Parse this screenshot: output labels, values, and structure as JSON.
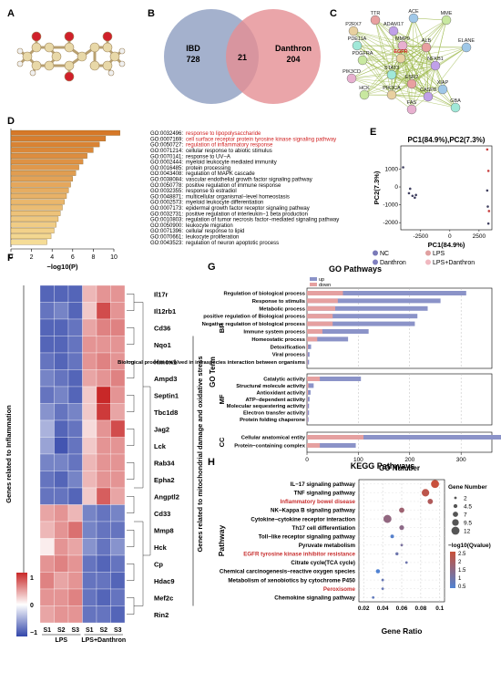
{
  "panel_labels": [
    "A",
    "B",
    "C",
    "D",
    "E",
    "F",
    "G",
    "H"
  ],
  "panel_b": {
    "left_name": "IBD",
    "left_count": "728",
    "overlap": "21",
    "right_name": "Danthron",
    "right_count": "204",
    "left_color": "#8d9ec0",
    "right_color": "#e58f93"
  },
  "panel_c": {
    "nodes": [
      "TTR",
      "ACE",
      "MME",
      "P2RX7",
      "ADAM17",
      "PDE11A",
      "MMP9",
      "ALB",
      "ELANE",
      "PDGFRA",
      "EGFR",
      "NFKB1",
      "STAT3",
      "PIK3CD",
      "ESR2",
      "XIAP",
      "HCK",
      "PIK3CA",
      "CASP8",
      "GBA",
      "FAS"
    ]
  },
  "panel_d": {
    "xlabel": "−log10(P)",
    "ticks": [
      "0",
      "2",
      "4",
      "6",
      "8",
      "10"
    ],
    "terms": [
      {
        "id": "GO:0032496",
        "label": "response to lipopolysaccharide",
        "value": 10.6,
        "highlight": true
      },
      {
        "id": "GO:0007169",
        "label": "cell surface receptor protein tyrosine kinase signaling pathway",
        "value": 9.2,
        "highlight": true
      },
      {
        "id": "GO:0050727",
        "label": "regulation of inflammatory response",
        "value": 8.6,
        "highlight": true
      },
      {
        "id": "GO:0071214",
        "label": "cellular response to abiotic stimulus",
        "value": 8.0,
        "highlight": false
      },
      {
        "id": "GO:0070141",
        "label": "response to UV−A",
        "value": 7.4,
        "highlight": false
      },
      {
        "id": "GO:0002444",
        "label": "myeloid leukocyte mediated immunity",
        "value": 7.0,
        "highlight": false
      },
      {
        "id": "GO:0016485",
        "label": "protein processing",
        "value": 6.6,
        "highlight": false
      },
      {
        "id": "GO:0043408",
        "label": "regulation of MAPK cascade",
        "value": 6.3,
        "highlight": false
      },
      {
        "id": "GO:0038084",
        "label": "vascular endothelial growth factor signaling pathway",
        "value": 6.0,
        "highlight": false
      },
      {
        "id": "GO:0050778",
        "label": "positive regulation of immune response",
        "value": 5.8,
        "highlight": false
      },
      {
        "id": "GO:0032355",
        "label": "response to estradiol",
        "value": 5.6,
        "highlight": false
      },
      {
        "id": "GO:0048871",
        "label": "multicellular organismal−level homeostasis",
        "value": 5.4,
        "highlight": false
      },
      {
        "id": "GO:0002573",
        "label": "myeloid leukocyte differentiation",
        "value": 5.2,
        "highlight": false
      },
      {
        "id": "GO:0007173",
        "label": "epidermal growth factor receptor signaling pathway",
        "value": 5.0,
        "highlight": false
      },
      {
        "id": "GO:0032731",
        "label": "positive regulation of interleukin−1 beta production",
        "value": 4.8,
        "highlight": false
      },
      {
        "id": "GO:0010803",
        "label": "regulation of tumor necrosis factor−mediated signaling pathway",
        "value": 4.6,
        "highlight": false
      },
      {
        "id": "GO:0050900",
        "label": "leukocyte migration",
        "value": 4.4,
        "highlight": false
      },
      {
        "id": "GO:0071396",
        "label": "cellular response to lipid",
        "value": 4.2,
        "highlight": false
      },
      {
        "id": "GO:0070661",
        "label": "leukocyte proliferation",
        "value": 3.9,
        "highlight": false
      },
      {
        "id": "GO:0043523",
        "label": "regulation of neuron apoptotic process",
        "value": 3.5,
        "highlight": false
      }
    ]
  },
  "panel_e": {
    "title": "PC1(84.9%),PC2(7.3%)",
    "xlabel": "PC1(84.9%)",
    "ylabel": "PC2(7.3%)",
    "xticks": [
      -2500,
      0,
      2500
    ],
    "yticks": [
      1000,
      0,
      -1000,
      -2000
    ],
    "xlim": [
      -4200,
      3600
    ],
    "ylim": [
      -2400,
      2300
    ],
    "legend": [
      {
        "name": "NC",
        "color": "#7a7ab8"
      },
      {
        "name": "LPS",
        "color": "#e0a0a0"
      },
      {
        "name": "Danthron",
        "color": "#8080c0"
      },
      {
        "name": "LPS+Danthron",
        "color": "#f0b8c0"
      }
    ],
    "points": [
      {
        "x": -4000,
        "y": 1100,
        "g": 0
      },
      {
        "x": -3500,
        "y": -350,
        "g": 0
      },
      {
        "x": -3200,
        "y": -500,
        "g": 2
      },
      {
        "x": -3000,
        "y": -600,
        "g": 2
      },
      {
        "x": -3400,
        "y": -100,
        "g": 0
      },
      {
        "x": -2900,
        "y": -450,
        "g": 2
      },
      {
        "x": 3200,
        "y": 2100,
        "g": 1
      },
      {
        "x": 3300,
        "y": 900,
        "g": 1
      },
      {
        "x": 3200,
        "y": -200,
        "g": 3
      },
      {
        "x": 3250,
        "y": -1100,
        "g": 3
      },
      {
        "x": 3350,
        "y": -1350,
        "g": 1
      },
      {
        "x": 3300,
        "y": -2050,
        "g": 3
      }
    ]
  },
  "panel_f": {
    "inflammation_label": "Genes related to Inflammation",
    "mito_label": "Genes related to mitochondrial damage and oxidative stress",
    "genes": [
      "Il17r",
      "Il12rb1",
      "Cd36",
      "Nqo1",
      "Hmox1",
      "Ampd3",
      "Septin1",
      "Tbc1d8",
      "Jag2",
      "Lck",
      "Rab34",
      "Epha2",
      "Angptl2",
      "Cd33",
      "Mmp8",
      "Hck",
      "Cp",
      "Hdac9",
      "Mef2c",
      "Rin2"
    ],
    "samples": [
      "S1",
      "S2",
      "S3",
      "S1",
      "S2",
      "S3"
    ],
    "groups": [
      "LPS",
      "LPS+Danthron"
    ],
    "legend_ticks": [
      "1",
      "0",
      "−1"
    ],
    "values": [
      [
        -1,
        -1,
        -1,
        0.4,
        0.6,
        0.6
      ],
      [
        -0.9,
        -0.8,
        -1,
        0.3,
        1,
        0.6
      ],
      [
        -1,
        -1,
        -0.9,
        0.5,
        0.7,
        0.7
      ],
      [
        -1,
        -1,
        -0.9,
        0.6,
        0.6,
        0.6
      ],
      [
        -0.9,
        -1,
        -0.9,
        0.6,
        0.7,
        0.6
      ],
      [
        -0.8,
        -0.9,
        -1,
        0.5,
        0.6,
        0.7
      ],
      [
        -0.9,
        -0.8,
        -1,
        0.3,
        1.2,
        0.6
      ],
      [
        -0.7,
        -0.9,
        -0.8,
        0.3,
        1.1,
        0.5
      ],
      [
        -0.5,
        -1,
        -0.9,
        0.2,
        0.6,
        1.0
      ],
      [
        -0.6,
        -1.1,
        -0.9,
        0.3,
        0.6,
        0.6
      ],
      [
        -0.8,
        -0.8,
        -0.9,
        0.4,
        0.6,
        0.6
      ],
      [
        -0.9,
        -1,
        -0.8,
        0.4,
        0.6,
        0.6
      ],
      [
        -0.9,
        -0.9,
        -1,
        0.3,
        0.9,
        0.5
      ],
      [
        0.5,
        0.6,
        0.4,
        -0.8,
        -0.9,
        -0.8
      ],
      [
        0.4,
        0.6,
        0.8,
        -0.8,
        -0.9,
        -0.9
      ],
      [
        0.1,
        0.6,
        0.5,
        -0.7,
        -0.9,
        -0.7
      ],
      [
        0.6,
        0.7,
        0.6,
        -0.9,
        -1,
        -0.9
      ],
      [
        0.7,
        0.5,
        0.6,
        -0.9,
        -0.9,
        -1
      ],
      [
        0.6,
        0.6,
        0.7,
        -0.9,
        -1,
        -0.9
      ],
      [
        0.5,
        0.6,
        0.6,
        -0.9,
        -0.9,
        -1
      ]
    ]
  },
  "panel_g": {
    "title": "GO Pathways",
    "legend": [
      {
        "name": "up",
        "color": "#8b93c8"
      },
      {
        "name": "down",
        "color": "#e5a0a0"
      }
    ],
    "ylabel": "GO Term",
    "xlabel": "GO Number",
    "xticks": [
      "0",
      "100",
      "200",
      "300"
    ],
    "sections": [
      {
        "name": "BP",
        "items": [
          {
            "label": "Regulation of biological process",
            "up": 240,
            "down": 70
          },
          {
            "label": "Response to stimulis",
            "up": 200,
            "down": 60
          },
          {
            "label": "Metabolic process",
            "up": 180,
            "down": 55
          },
          {
            "label": "positive regulation of Biological process",
            "up": 165,
            "down": 50
          },
          {
            "label": "Negative regulation of biological process",
            "up": 160,
            "down": 50
          },
          {
            "label": "Immune system process",
            "up": 90,
            "down": 30
          },
          {
            "label": "Homeostatic process",
            "up": 60,
            "down": 20
          },
          {
            "label": "Detoxification",
            "up": 6,
            "down": 2
          },
          {
            "label": "Viral process",
            "up": 4,
            "down": 1
          },
          {
            "label": "Biological process involved in intraspecies interaction between organisms",
            "up": 3,
            "down": 1
          }
        ]
      },
      {
        "name": "MF",
        "items": [
          {
            "label": "Catalytic activity",
            "up": 80,
            "down": 25
          },
          {
            "label": "Structural molecule activity",
            "up": 10,
            "down": 3
          },
          {
            "label": "Antioxidant activity",
            "up": 5,
            "down": 2
          },
          {
            "label": "ATP−dependent activity",
            "up": 4,
            "down": 1
          },
          {
            "label": "Molecular sequestering activity",
            "up": 3,
            "down": 1
          },
          {
            "label": "Electron transfer activity",
            "up": 3,
            "down": 1
          },
          {
            "label": "Protein folding chaperone",
            "up": 2,
            "down": 1
          }
        ]
      },
      {
        "name": "CC",
        "items": [
          {
            "label": "Cellular anatomical entity",
            "up": 320,
            "down": 110
          },
          {
            "label": "Protein−containing complex",
            "up": 70,
            "down": 25
          }
        ]
      }
    ]
  },
  "panel_h": {
    "title": "KEGG Pathways",
    "ylabel": "Pathway",
    "xlabel": "Gene Ratio",
    "xticks": [
      "0.02",
      "0.04",
      "0.06",
      "0.08",
      "0.1"
    ],
    "size_legend_title": "Gene Number",
    "size_legend": [
      "2",
      "4.5",
      "7",
      "9.5",
      "12"
    ],
    "color_legend_title": "−log10(Qvalue)",
    "color_legend": [
      "2.5",
      "2",
      "1.5",
      "1",
      "0.5"
    ],
    "pathways": [
      {
        "label": "IL−17 signaling pathway",
        "ratio": 0.095,
        "count": 12,
        "q": 2.5,
        "highlight": false
      },
      {
        "label": "TNF signaling pathway",
        "ratio": 0.085,
        "count": 11,
        "q": 2.3,
        "highlight": false
      },
      {
        "label": "Inflammatory bowel disease",
        "ratio": 0.09,
        "count": 7,
        "q": 2.1,
        "highlight": true
      },
      {
        "label": "NK−Kappa B signaling pathway",
        "ratio": 0.06,
        "count": 7,
        "q": 1.8,
        "highlight": false
      },
      {
        "label": "Cytokine−cytokine receptor interaction",
        "ratio": 0.045,
        "count": 12,
        "q": 1.6,
        "highlight": false
      },
      {
        "label": "Th17 cell differentiation",
        "ratio": 0.06,
        "count": 6,
        "q": 1.5,
        "highlight": false
      },
      {
        "label": "Toll−like receptor signaling pathway",
        "ratio": 0.05,
        "count": 4,
        "q": 0.6,
        "highlight": false
      },
      {
        "label": "Pyruvate metabolism",
        "ratio": 0.06,
        "count": 2,
        "q": 1.2,
        "highlight": false
      },
      {
        "label": "EGFR tyrosine kinase inhibitor resistance",
        "ratio": 0.055,
        "count": 3,
        "q": 1.0,
        "highlight": true
      },
      {
        "label": "Citrate cycle(TCA cycle)",
        "ratio": 0.065,
        "count": 2,
        "q": 1.0,
        "highlight": false
      },
      {
        "label": "Chemical carcinogenesis−reactive oxygen species",
        "ratio": 0.035,
        "count": 5,
        "q": 0.5,
        "highlight": false
      },
      {
        "label": "Metabolism of xenobiotics by cytochrome P450",
        "ratio": 0.04,
        "count": 2,
        "q": 0.9,
        "highlight": false
      },
      {
        "label": "Peroxisome",
        "ratio": 0.04,
        "count": 2,
        "q": 0.9,
        "highlight": true
      },
      {
        "label": "Chemokine signaling pathway",
        "ratio": 0.03,
        "count": 2,
        "q": 0.8,
        "highlight": false
      }
    ]
  }
}
